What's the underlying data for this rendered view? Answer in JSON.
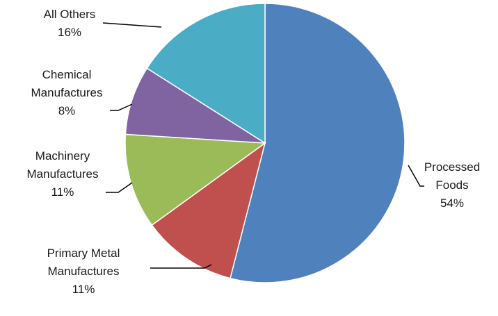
{
  "chart_data": {
    "type": "pie",
    "title": "",
    "start": "top",
    "direction": "clockwise",
    "series": [
      {
        "slices": [
          {
            "label": "Processed Foods",
            "value": 54,
            "value_label": "54%",
            "color": "#4F81BD"
          },
          {
            "label": "Primary Metal Manufactures",
            "value": 11,
            "value_label": "11%",
            "color": "#C0504D"
          },
          {
            "label": "Machinery Manufactures",
            "value": 11,
            "value_label": "11%",
            "color": "#9BBB59"
          },
          {
            "label": "Chemical Manufactures",
            "value": 8,
            "value_label": "8%",
            "color": "#8064A2"
          },
          {
            "label": "All Others",
            "value": 16,
            "value_label": "16%",
            "color": "#4BACC6"
          }
        ]
      }
    ]
  }
}
